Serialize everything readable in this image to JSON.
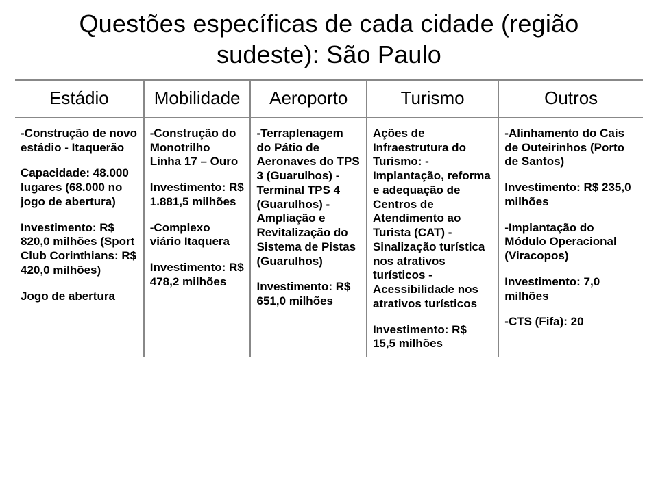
{
  "title_line1": "Questões específicas de cada cidade (região",
  "title_line2": "sudeste): São Paulo",
  "columns": {
    "c0": {
      "label": "Estádio",
      "width": "20.5%"
    },
    "c1": {
      "label": "Mobilidade",
      "width": "17%"
    },
    "c2": {
      "label": "Aeroporto",
      "width": "18.5%"
    },
    "c3": {
      "label": "Turismo",
      "width": "21%"
    },
    "c4": {
      "label": "Outros",
      "width": "23%"
    }
  },
  "row0": {
    "c0": {
      "p0": "-Construção de novo estádio - Itaquerão",
      "p1": "Capacidade: 48.000 lugares (68.000 no jogo de abertura)",
      "p2": "Investimento: R$ 820,0 milhões (Sport Club Corinthians: R$ 420,0 milhões)",
      "p3": "Jogo de abertura"
    },
    "c1": {
      "p0": "-Construção do Monotrilho Linha 17 – Ouro",
      "p1": "Investimento: R$ 1.881,5 milhões",
      "p2": "-Complexo viário Itaquera",
      "p3": "Investimento: R$ 478,2 milhões"
    },
    "c2": {
      "p0": "-Terraplenagem do Pátio de Aeronaves do TPS 3 (Guarulhos)\n-Terminal TPS 4 (Guarulhos)\n-Ampliação e Revitalização do Sistema de Pistas (Guarulhos)",
      "p1": "Investimento: R$ 651,0 milhões"
    },
    "c3": {
      "p0": "Ações de Infraestrutura do Turismo:\n-Implantação, reforma e adequação de Centros de Atendimento ao Turista\n(CAT)\n-Sinalização turística nos atrativos turísticos\n-Acessibilidade nos atrativos turísticos",
      "p1": "Investimento: R$ 15,5 milhões"
    },
    "c4": {
      "p0": "-Alinhamento do Cais de Outeirinhos (Porto de Santos)",
      "p1": "Investimento: R$ 235,0 milhões",
      "p2": "-Implantação do Módulo Operacional (Viracopos)",
      "p3": "Investimento: 7,0 milhões",
      "p4": "-CTS (Fifa): 20"
    }
  },
  "colors": {
    "text": "#000000",
    "border": "#888888",
    "background": "#ffffff"
  },
  "fonts": {
    "title_size_pt": 27,
    "header_size_pt": 20,
    "body_size_pt": 13,
    "family": "Arial"
  }
}
